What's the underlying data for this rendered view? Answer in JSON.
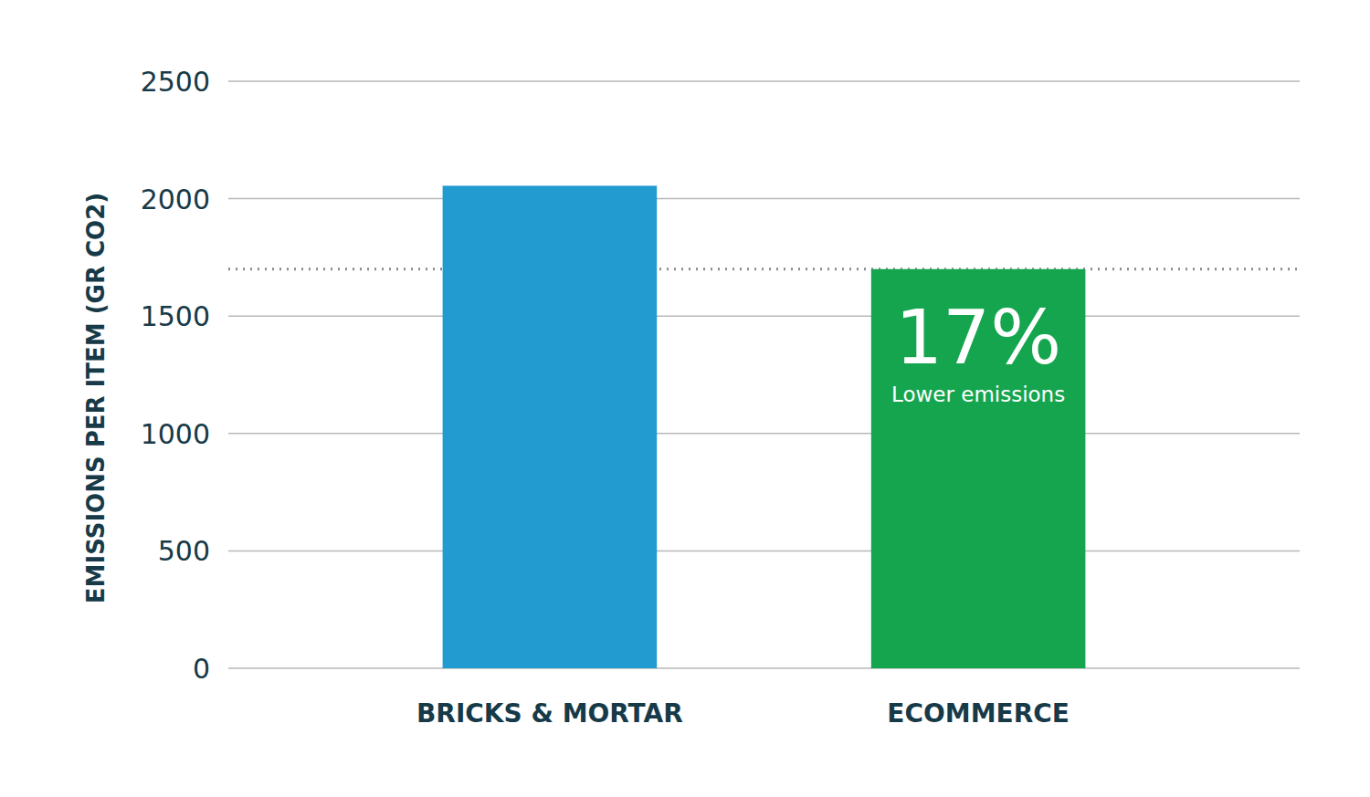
{
  "chart_data": {
    "type": "bar",
    "y_label": "EMISSIONS PER ITEM (GR CO2)",
    "categories": [
      "BRICKS & MORTAR",
      "ECOMMERCE"
    ],
    "values": [
      2055,
      1700
    ],
    "colors": [
      "#219bd0",
      "#16a54f"
    ],
    "ylim": [
      0,
      2500
    ],
    "yticks": [
      0,
      500,
      1000,
      1500,
      2000,
      2500
    ],
    "grid": true,
    "annotations": [
      "17%",
      "Lower emissions"
    ]
  }
}
